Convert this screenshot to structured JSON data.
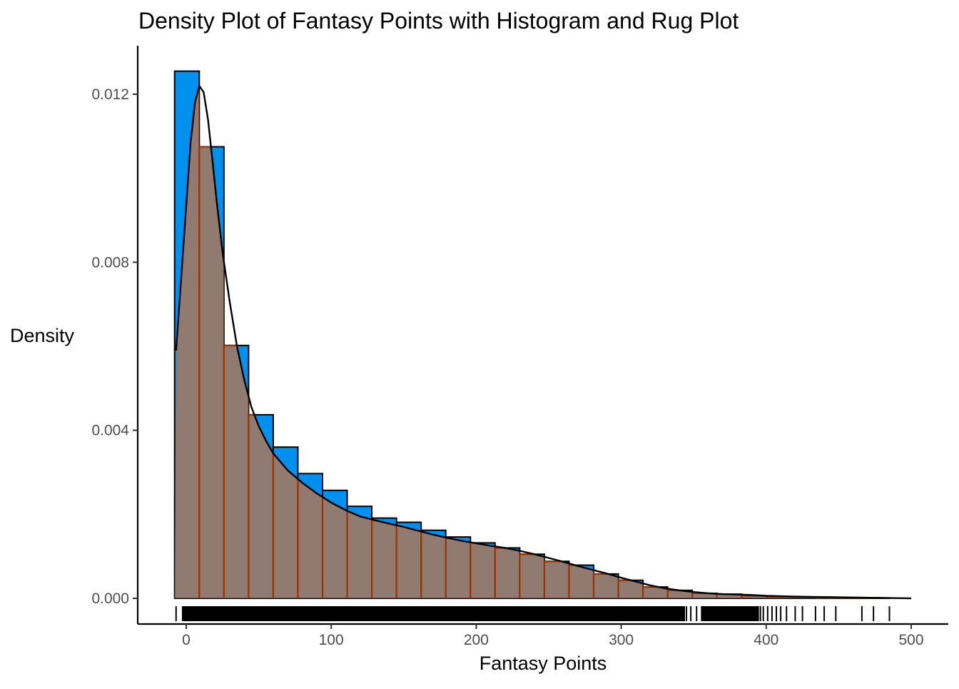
{
  "chart_data": {
    "type": "histogram",
    "title": "Density Plot of Fantasy Points with Histogram and Rug Plot",
    "xlabel": "Fantasy Points",
    "ylabel": "Density",
    "xlim": [
      -34,
      510
    ],
    "ylim": [
      -0.0006,
      0.0131
    ],
    "x_ticks": [
      0,
      100,
      200,
      300,
      400,
      500
    ],
    "x_tick_labels": [
      "0",
      "100",
      "200",
      "300",
      "400",
      "500"
    ],
    "y_ticks": [
      0,
      0.004,
      0.008,
      0.012
    ],
    "y_tick_labels": [
      "0.000",
      "0.004",
      "0.008",
      "0.012"
    ],
    "grid": false,
    "legend": "none",
    "colors": {
      "histogram_fill": "#0091ee",
      "histogram_outline": "#000000",
      "density_fill": "#f26b1d",
      "density_fill_opacity": 0.6,
      "density_outline": "#993300",
      "density_curve": "#000000",
      "rug": "#000000"
    },
    "bins": {
      "start": -8,
      "width": 17,
      "heights": [
        0.01255,
        0.01075,
        0.00602,
        0.00437,
        0.0036,
        0.00297,
        0.00257,
        0.00219,
        0.00191,
        0.00181,
        0.00162,
        0.00146,
        0.00132,
        0.0012,
        0.00105,
        0.00088,
        0.00079,
        0.00058,
        0.00043,
        0.00027,
        0.00019,
        0.00012,
        0.0001,
        6e-05,
        4e-05,
        2e-05,
        1e-05,
        1e-05,
        1e-05,
        0.0,
        0.0
      ]
    },
    "density_curve": {
      "x": [
        -7,
        0,
        3,
        6,
        9,
        12,
        15,
        18,
        21,
        25,
        30,
        35,
        40,
        45,
        50,
        55,
        60,
        70,
        80,
        90,
        100,
        110,
        120,
        130,
        140,
        150,
        160,
        170,
        180,
        190,
        200,
        210,
        220,
        230,
        240,
        250,
        260,
        270,
        280,
        290,
        300,
        310,
        320,
        330,
        340,
        350,
        360,
        370,
        380,
        390,
        400,
        420,
        440,
        460,
        480,
        500
      ],
      "y": [
        0.0059,
        0.00935,
        0.01085,
        0.0118,
        0.0122,
        0.01205,
        0.0114,
        0.01045,
        0.00945,
        0.00825,
        0.00705,
        0.006,
        0.0052,
        0.00455,
        0.0041,
        0.00375,
        0.00345,
        0.00305,
        0.00275,
        0.0025,
        0.00228,
        0.0021,
        0.00195,
        0.00186,
        0.00178,
        0.0017,
        0.00161,
        0.00152,
        0.00144,
        0.00137,
        0.00131,
        0.00125,
        0.0012,
        0.00113,
        0.00105,
        0.00096,
        0.00087,
        0.00077,
        0.00068,
        0.00059,
        0.00049,
        0.0004,
        0.00031,
        0.00024,
        0.00019,
        0.00015,
        0.00012,
        0.0001,
        9e-05,
        8e-05,
        6e-05,
        4e-05,
        3e-05,
        2e-05,
        1e-05,
        0.0
      ]
    },
    "rug": {
      "dense_ranges": [
        [
          -3,
          344
        ],
        [
          355,
          395
        ]
      ],
      "points": [
        -7,
        345,
        348,
        352,
        357,
        360,
        363,
        367,
        370,
        372,
        375,
        378,
        381,
        384,
        386,
        388,
        390,
        393,
        396,
        398,
        401,
        404,
        407,
        410,
        414,
        420,
        425,
        434,
        440,
        448,
        466,
        474,
        485
      ]
    }
  }
}
